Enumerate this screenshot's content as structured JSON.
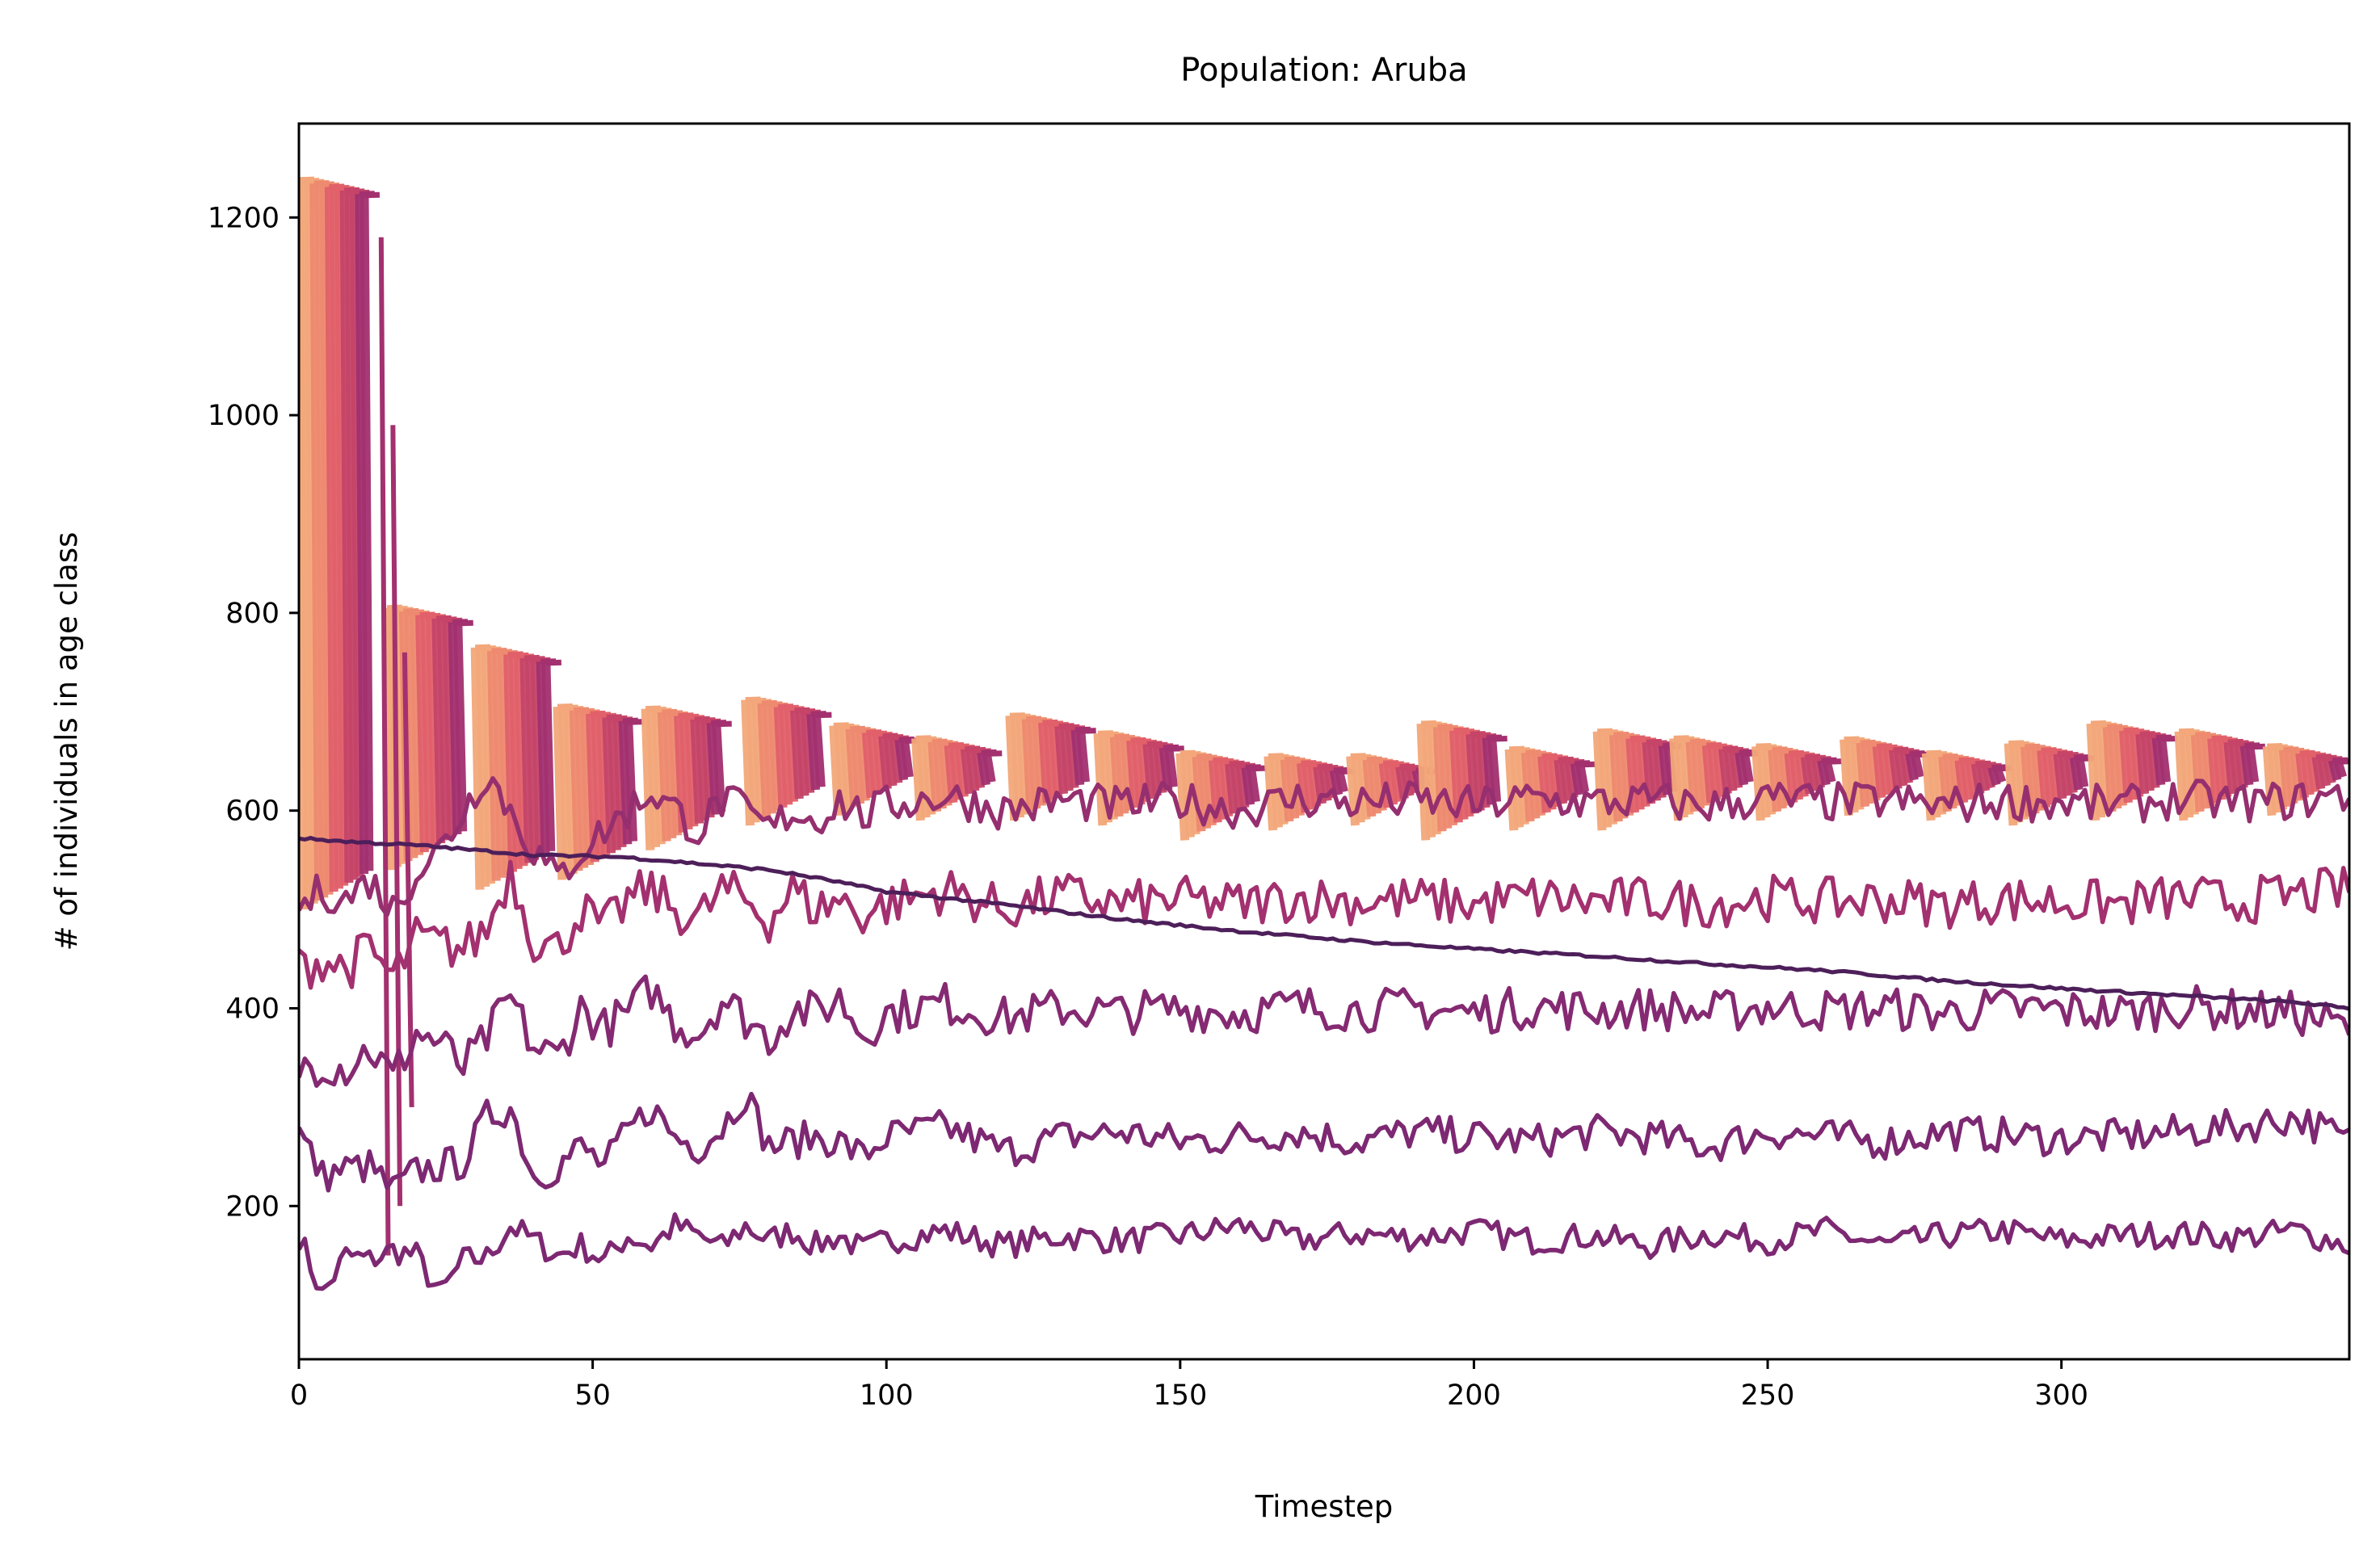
{
  "chart_data": {
    "type": "line",
    "title": "Population: Aruba",
    "xlabel": "Timestep",
    "ylabel": "# of individuals in age class",
    "xlim": [
      0,
      349
    ],
    "ylim": [
      45,
      1295
    ],
    "xticks": [
      0,
      50,
      100,
      150,
      200,
      250,
      300
    ],
    "yticks": [
      200,
      400,
      600,
      800,
      1000,
      1200
    ],
    "grid": false,
    "legend": "none",
    "colors": {
      "newest_cohorts": "#f3a77a",
      "young_cohorts": "#e1606a",
      "middle_cohorts": "#a3306f",
      "old_cohorts": "#7d2872",
      "decline_line": "#4d1f5a"
    },
    "series": [
      {
        "role": "decline-line",
        "points": [
          [
            0,
            572
          ],
          [
            10,
            568
          ],
          [
            20,
            565
          ],
          [
            30,
            560
          ],
          [
            40,
            555
          ],
          [
            55,
            553
          ],
          [
            65,
            548
          ],
          [
            80,
            540
          ],
          [
            90,
            530
          ],
          [
            100,
            518
          ],
          [
            120,
            505
          ],
          [
            140,
            490
          ],
          [
            160,
            478
          ],
          [
            180,
            468
          ],
          [
            200,
            460
          ],
          [
            220,
            453
          ],
          [
            240,
            445
          ],
          [
            260,
            438
          ],
          [
            280,
            428
          ],
          [
            300,
            420
          ],
          [
            320,
            413
          ],
          [
            340,
            406
          ],
          [
            349,
            400
          ]
        ]
      },
      {
        "role": "noisy-band",
        "points": [
          [
            0,
            170
          ],
          [
            4,
            110
          ],
          [
            8,
            150
          ],
          [
            12,
            145
          ],
          [
            16,
            155
          ],
          [
            20,
            150
          ],
          [
            24,
            110
          ],
          [
            28,
            145
          ],
          [
            32,
            148
          ],
          [
            36,
            180
          ],
          [
            40,
            165
          ],
          [
            44,
            150
          ],
          [
            48,
            160
          ],
          [
            52,
            145
          ],
          [
            56,
            170
          ],
          [
            60,
            160
          ],
          [
            64,
            180
          ],
          [
            68,
            170
          ],
          [
            72,
            158
          ],
          [
            76,
            180
          ],
          [
            80,
            165
          ],
          [
            84,
            175
          ],
          [
            88,
            160
          ],
          [
            92,
            170
          ],
          [
            96,
            155
          ],
          [
            100,
            165
          ],
          [
            110,
            175
          ],
          [
            120,
            160
          ],
          [
            130,
            170
          ],
          [
            140,
            165
          ],
          [
            150,
            170
          ],
          [
            160,
            180
          ],
          [
            170,
            165
          ],
          [
            180,
            172
          ],
          [
            190,
            168
          ],
          [
            200,
            175
          ],
          [
            210,
            165
          ],
          [
            220,
            170
          ],
          [
            230,
            160
          ],
          [
            240,
            172
          ],
          [
            250,
            165
          ],
          [
            260,
            175
          ],
          [
            270,
            160
          ],
          [
            280,
            170
          ],
          [
            290,
            175
          ],
          [
            300,
            165
          ],
          [
            310,
            170
          ],
          [
            320,
            172
          ],
          [
            330,
            168
          ],
          [
            340,
            175
          ],
          [
            349,
            160
          ]
        ],
        "amp": 14
      },
      {
        "role": "noisy-band",
        "points": [
          [
            0,
            275
          ],
          [
            4,
            230
          ],
          [
            8,
            238
          ],
          [
            12,
            240
          ],
          [
            16,
            215
          ],
          [
            20,
            235
          ],
          [
            24,
            240
          ],
          [
            28,
            245
          ],
          [
            32,
            290
          ],
          [
            36,
            300
          ],
          [
            40,
            230
          ],
          [
            44,
            240
          ],
          [
            48,
            260
          ],
          [
            52,
            240
          ],
          [
            56,
            275
          ],
          [
            60,
            300
          ],
          [
            64,
            270
          ],
          [
            68,
            260
          ],
          [
            72,
            280
          ],
          [
            76,
            315
          ],
          [
            80,
            260
          ],
          [
            84,
            265
          ],
          [
            88,
            270
          ],
          [
            92,
            265
          ],
          [
            96,
            250
          ],
          [
            100,
            270
          ],
          [
            110,
            280
          ],
          [
            120,
            255
          ],
          [
            130,
            270
          ],
          [
            140,
            275
          ],
          [
            150,
            265
          ],
          [
            160,
            270
          ],
          [
            170,
            275
          ],
          [
            180,
            265
          ],
          [
            190,
            275
          ],
          [
            200,
            270
          ],
          [
            210,
            265
          ],
          [
            220,
            275
          ],
          [
            230,
            270
          ],
          [
            240,
            260
          ],
          [
            250,
            275
          ],
          [
            260,
            270
          ],
          [
            270,
            265
          ],
          [
            280,
            275
          ],
          [
            290,
            272
          ],
          [
            300,
            268
          ],
          [
            310,
            270
          ],
          [
            320,
            275
          ],
          [
            330,
            280
          ],
          [
            340,
            290
          ],
          [
            349,
            265
          ]
        ],
        "amp": 18
      },
      {
        "role": "noisy-band",
        "points": [
          [
            0,
            340
          ],
          [
            4,
            345
          ],
          [
            8,
            340
          ],
          [
            12,
            360
          ],
          [
            16,
            330
          ],
          [
            20,
            375
          ],
          [
            24,
            365
          ],
          [
            28,
            340
          ],
          [
            32,
            370
          ],
          [
            36,
            410
          ],
          [
            40,
            360
          ],
          [
            44,
            350
          ],
          [
            48,
            400
          ],
          [
            52,
            380
          ],
          [
            56,
            395
          ],
          [
            60,
            420
          ],
          [
            64,
            385
          ],
          [
            68,
            375
          ],
          [
            72,
            410
          ],
          [
            76,
            390
          ],
          [
            80,
            370
          ],
          [
            84,
            400
          ],
          [
            88,
            395
          ],
          [
            92,
            410
          ],
          [
            96,
            375
          ],
          [
            100,
            395
          ],
          [
            110,
            405
          ],
          [
            120,
            390
          ],
          [
            130,
            400
          ],
          [
            140,
            395
          ],
          [
            150,
            400
          ],
          [
            160,
            395
          ],
          [
            170,
            402
          ],
          [
            180,
            398
          ],
          [
            190,
            400
          ],
          [
            200,
            395
          ],
          [
            210,
            402
          ],
          [
            220,
            398
          ],
          [
            230,
            400
          ],
          [
            240,
            395
          ],
          [
            250,
            402
          ],
          [
            260,
            398
          ],
          [
            270,
            400
          ],
          [
            280,
            395
          ],
          [
            290,
            400
          ],
          [
            300,
            398
          ],
          [
            310,
            395
          ],
          [
            320,
            402
          ],
          [
            330,
            398
          ],
          [
            340,
            395
          ],
          [
            349,
            380
          ]
        ],
        "amp": 22
      },
      {
        "role": "noisy-band",
        "points": [
          [
            0,
            440
          ],
          [
            4,
            450
          ],
          [
            8,
            440
          ],
          [
            12,
            460
          ],
          [
            16,
            430
          ],
          [
            20,
            470
          ],
          [
            24,
            465
          ],
          [
            28,
            460
          ],
          [
            32,
            480
          ],
          [
            36,
            540
          ],
          [
            40,
            470
          ],
          [
            44,
            460
          ],
          [
            48,
            500
          ],
          [
            52,
            480
          ],
          [
            56,
            510
          ],
          [
            60,
            520
          ],
          [
            64,
            500
          ],
          [
            68,
            490
          ],
          [
            72,
            520
          ],
          [
            76,
            510
          ],
          [
            80,
            490
          ],
          [
            84,
            520
          ],
          [
            88,
            500
          ],
          [
            92,
            510
          ],
          [
            96,
            495
          ],
          [
            100,
            505
          ],
          [
            110,
            520
          ],
          [
            120,
            500
          ],
          [
            130,
            515
          ],
          [
            140,
            505
          ],
          [
            150,
            510
          ],
          [
            160,
            505
          ],
          [
            170,
            512
          ],
          [
            180,
            508
          ],
          [
            190,
            510
          ],
          [
            200,
            505
          ],
          [
            210,
            512
          ],
          [
            220,
            508
          ],
          [
            230,
            510
          ],
          [
            240,
            505
          ],
          [
            250,
            512
          ],
          [
            260,
            508
          ],
          [
            270,
            510
          ],
          [
            280,
            505
          ],
          [
            290,
            510
          ],
          [
            300,
            508
          ],
          [
            310,
            505
          ],
          [
            320,
            512
          ],
          [
            330,
            508
          ],
          [
            340,
            515
          ],
          [
            349,
            520
          ]
        ],
        "amp": 24
      },
      {
        "role": "noisy-band",
        "points": [
          [
            0,
            500
          ],
          [
            4,
            520
          ],
          [
            8,
            510
          ],
          [
            12,
            530
          ],
          [
            16,
            500
          ],
          [
            20,
            540
          ],
          [
            24,
            560
          ],
          [
            28,
            600
          ],
          [
            32,
            640
          ],
          [
            36,
            600
          ],
          [
            40,
            560
          ],
          [
            44,
            530
          ],
          [
            48,
            560
          ],
          [
            52,
            580
          ],
          [
            56,
            600
          ],
          [
            60,
            620
          ],
          [
            64,
            600
          ],
          [
            68,
            580
          ],
          [
            72,
            610
          ],
          [
            76,
            600
          ],
          [
            80,
            580
          ],
          [
            84,
            600
          ],
          [
            88,
            590
          ],
          [
            92,
            610
          ],
          [
            96,
            595
          ],
          [
            100,
            605
          ],
          [
            110,
            615
          ],
          [
            120,
            600
          ],
          [
            130,
            610
          ],
          [
            140,
            605
          ],
          [
            150,
            610
          ],
          [
            160,
            600
          ],
          [
            170,
            612
          ],
          [
            180,
            608
          ],
          [
            190,
            610
          ],
          [
            200,
            605
          ],
          [
            210,
            612
          ],
          [
            220,
            608
          ],
          [
            230,
            610
          ],
          [
            240,
            605
          ],
          [
            250,
            612
          ],
          [
            260,
            608
          ],
          [
            270,
            610
          ],
          [
            280,
            605
          ],
          [
            290,
            610
          ],
          [
            300,
            608
          ],
          [
            310,
            605
          ],
          [
            320,
            612
          ],
          [
            330,
            608
          ],
          [
            340,
            610
          ],
          [
            349,
            615
          ]
        ],
        "amp": 20
      }
    ],
    "cohort_blocks": [
      {
        "x0": 0,
        "x1": 12,
        "top": 1238,
        "bottom": 500
      },
      {
        "x0": 15,
        "x1": 28,
        "top": 805,
        "bottom": 540
      },
      {
        "x0": 30,
        "x1": 43,
        "top": 765,
        "bottom": 520
      },
      {
        "x0": 44,
        "x1": 57,
        "top": 705,
        "bottom": 530
      },
      {
        "x0": 59,
        "x1": 72,
        "top": 703,
        "bottom": 560
      },
      {
        "x0": 76,
        "x1": 89,
        "top": 712,
        "bottom": 585
      },
      {
        "x0": 91,
        "x1": 104,
        "top": 686,
        "bottom": 595
      },
      {
        "x0": 105,
        "x1": 118,
        "top": 673,
        "bottom": 590
      },
      {
        "x0": 121,
        "x1": 134,
        "top": 696,
        "bottom": 590
      },
      {
        "x0": 136,
        "x1": 149,
        "top": 678,
        "bottom": 585
      },
      {
        "x0": 150,
        "x1": 163,
        "top": 658,
        "bottom": 570
      },
      {
        "x0": 165,
        "x1": 178,
        "top": 655,
        "bottom": 580
      },
      {
        "x0": 179,
        "x1": 192,
        "top": 655,
        "bottom": 585
      },
      {
        "x0": 191,
        "x1": 204,
        "top": 688,
        "bottom": 570
      },
      {
        "x0": 206,
        "x1": 219,
        "top": 662,
        "bottom": 580
      },
      {
        "x0": 221,
        "x1": 234,
        "top": 680,
        "bottom": 580
      },
      {
        "x0": 234,
        "x1": 247,
        "top": 673,
        "bottom": 590
      },
      {
        "x0": 248,
        "x1": 261,
        "top": 665,
        "bottom": 590
      },
      {
        "x0": 263,
        "x1": 276,
        "top": 672,
        "bottom": 595
      },
      {
        "x0": 277,
        "x1": 290,
        "top": 658,
        "bottom": 590
      },
      {
        "x0": 291,
        "x1": 304,
        "top": 668,
        "bottom": 585
      },
      {
        "x0": 305,
        "x1": 318,
        "top": 688,
        "bottom": 590
      },
      {
        "x0": 320,
        "x1": 333,
        "top": 680,
        "bottom": 590
      },
      {
        "x0": 335,
        "x1": 348,
        "top": 665,
        "bottom": 595
      }
    ],
    "transient_spikes": [
      {
        "x": 14,
        "top": 1180,
        "bottom": 150
      },
      {
        "x": 16,
        "top": 990,
        "bottom": 200
      },
      {
        "x": 18,
        "top": 760,
        "bottom": 300
      }
    ]
  }
}
